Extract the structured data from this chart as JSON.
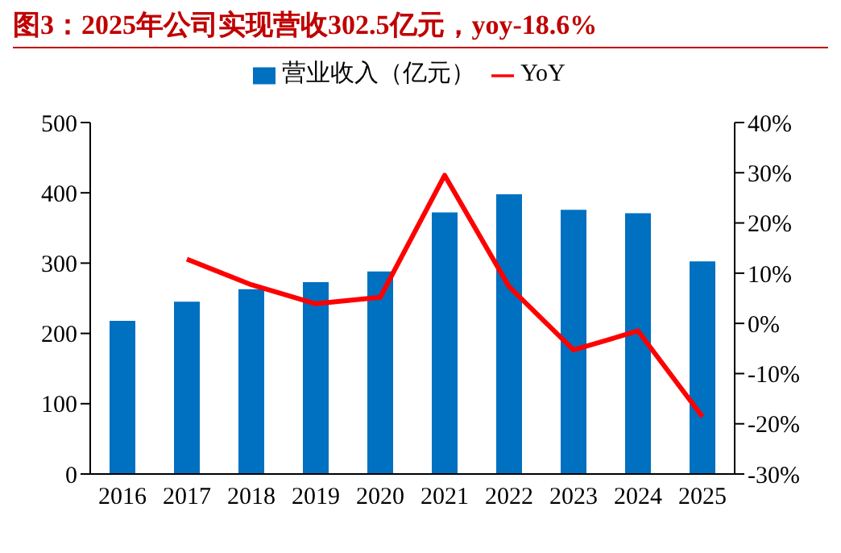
{
  "chart_data": {
    "type": "bar",
    "title": "图3：2025年公司实现营收302.5亿元，yoy-18.6%",
    "categories": [
      "2016",
      "2017",
      "2018",
      "2019",
      "2020",
      "2021",
      "2022",
      "2023",
      "2024",
      "2025"
    ],
    "series": [
      {
        "name": "营业收入（亿元）",
        "color": "#0070c0",
        "values": [
          218,
          245,
          263,
          273,
          288,
          372,
          398,
          376,
          371,
          302.5
        ]
      },
      {
        "name": "YoY",
        "type": "line",
        "axis": "y2",
        "color": "#ff0000",
        "values": [
          null,
          12.8,
          7.7,
          3.9,
          5.2,
          29.5,
          7.3,
          -5.3,
          -1.5,
          -18.6
        ]
      }
    ],
    "ylim": [
      0,
      500
    ],
    "yticks": [
      0,
      100,
      200,
      300,
      400,
      500
    ],
    "y2lim": [
      -30,
      40
    ],
    "y2ticks": [
      {
        "value": -30,
        "label": "-30%"
      },
      {
        "value": -20,
        "label": "-20%"
      },
      {
        "value": -10,
        "label": "-10%"
      },
      {
        "value": 0,
        "label": "0%"
      },
      {
        "value": 10,
        "label": "10%"
      },
      {
        "value": 20,
        "label": "20%"
      },
      {
        "value": 30,
        "label": "30%"
      },
      {
        "value": 40,
        "label": "40%"
      }
    ],
    "legend": "top",
    "grid": false,
    "marker": "none"
  }
}
